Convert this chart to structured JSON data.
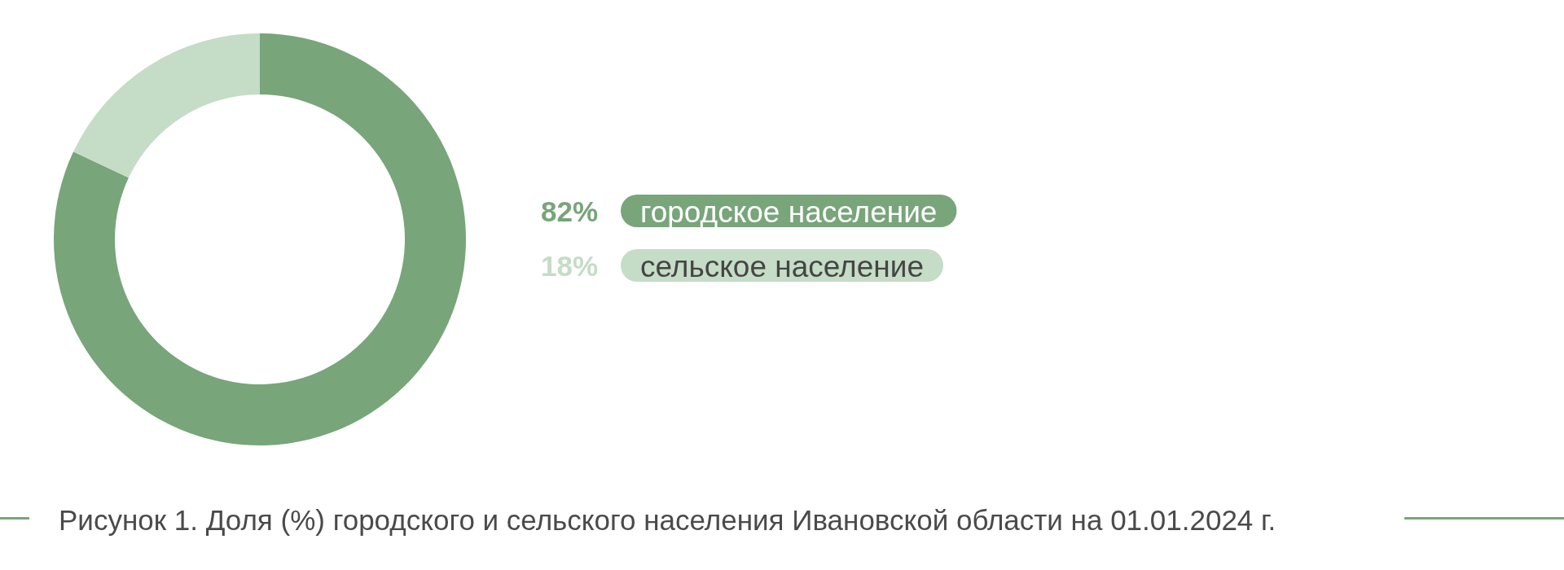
{
  "chart_data": {
    "type": "donut",
    "title": "Рисунок 1. Доля (%) городского и сельского населения Ивановской области на 01.01.2024 г.",
    "categories": [
      "городское население",
      "сельское население"
    ],
    "values": [
      82,
      18
    ],
    "value_labels": [
      "82%",
      "18%"
    ],
    "colors": [
      "#78a57a",
      "#c5dcc7"
    ],
    "legend": "right"
  }
}
